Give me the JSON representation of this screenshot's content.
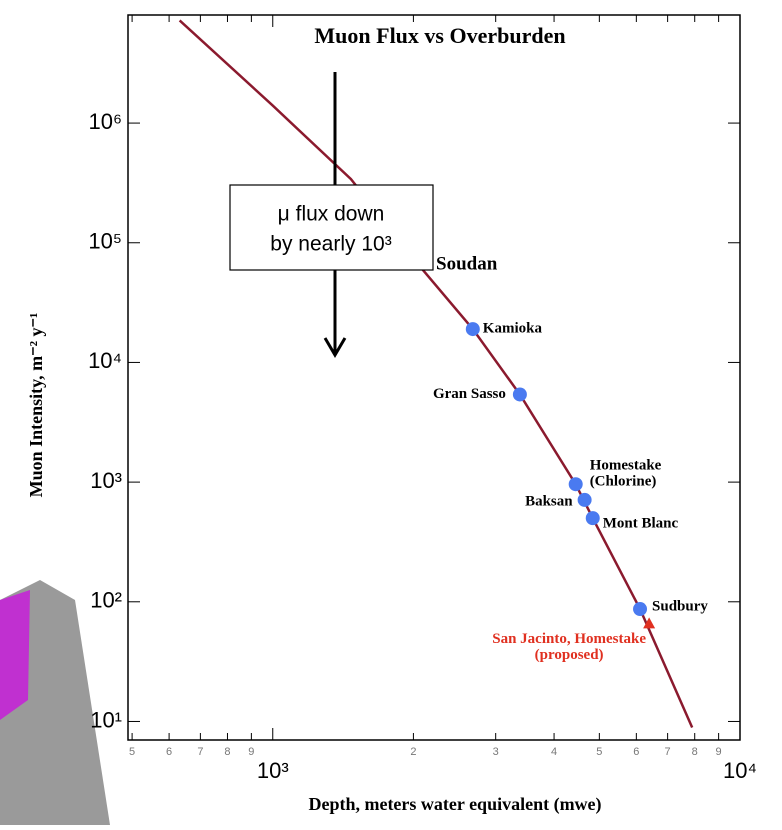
{
  "chart_data": {
    "type": "line",
    "title": "Muon Flux vs Overburden",
    "xlabel": "Depth, meters water equivalent (mwe)",
    "ylabel": "Muon Intensity, m⁻² y⁻¹",
    "log_x": true,
    "log_y": true,
    "xlim": [
      490,
      10000
    ],
    "ylim": [
      7,
      8000000
    ],
    "xticks": [
      {
        "value": 500,
        "label": "5"
      },
      {
        "value": 600,
        "label": "6"
      },
      {
        "value": 700,
        "label": "7"
      },
      {
        "value": 800,
        "label": "8"
      },
      {
        "value": 900,
        "label": "9"
      },
      {
        "value": 1000,
        "label": "10³"
      },
      {
        "value": 2000,
        "label": "2"
      },
      {
        "value": 3000,
        "label": "3"
      },
      {
        "value": 4000,
        "label": "4"
      },
      {
        "value": 5000,
        "label": "5"
      },
      {
        "value": 6000,
        "label": "6"
      },
      {
        "value": 7000,
        "label": "7"
      },
      {
        "value": 8000,
        "label": "8"
      },
      {
        "value": 9000,
        "label": "9"
      },
      {
        "value": 10000,
        "label": "10⁴"
      }
    ],
    "yticks": [
      {
        "value": 10,
        "label": "10¹"
      },
      {
        "value": 100,
        "label": "10²"
      },
      {
        "value": 1000,
        "label": "10³"
      },
      {
        "value": 10000,
        "label": "10⁴"
      },
      {
        "value": 100000,
        "label": "10⁵"
      },
      {
        "value": 1000000,
        "label": "10⁶"
      }
    ],
    "series": [
      {
        "color": "#8b1a2e",
        "x": [
          632,
          1000,
          1470,
          2090,
          2680,
          3380,
          4450,
          4840,
          6110,
          7900
        ],
        "values": [
          7200000,
          1400000,
          340000,
          60000,
          19000,
          5400,
          960,
          500,
          87,
          8.9
        ]
      }
    ],
    "points": [
      {
        "label": [
          "Kamioka"
        ],
        "x": 2680,
        "y": 19000,
        "color": "#4a7af0",
        "label_color": "#000000"
      },
      {
        "label": [
          "Gran Sasso"
        ],
        "x": 3380,
        "y": 5400,
        "color": "#4a7af0",
        "label_color": "#000000"
      },
      {
        "label": [
          "Homestake",
          "(Chlorine)"
        ],
        "x": 4450,
        "y": 960,
        "color": "#4a7af0",
        "label_color": "#000000"
      },
      {
        "label": [
          "Baksan"
        ],
        "x": 4650,
        "y": 710,
        "color": "#4a7af0",
        "label_color": "#000000"
      },
      {
        "label": [
          "Mont Blanc"
        ],
        "x": 4840,
        "y": 500,
        "color": "#4a7af0",
        "label_color": "#000000"
      },
      {
        "label": [
          "Sudbury"
        ],
        "x": 6110,
        "y": 87,
        "color": "#4a7af0",
        "label_color": "#000000"
      },
      {
        "label": [
          "San Jacinto, Homestake",
          "(proposed)"
        ],
        "x": 6390,
        "y": 66,
        "color": "#e03020",
        "label_color": "#e03020"
      }
    ],
    "annotations": [
      "Soudan"
    ],
    "callout": [
      "μ flux down",
      "by nearly 10³"
    ]
  }
}
